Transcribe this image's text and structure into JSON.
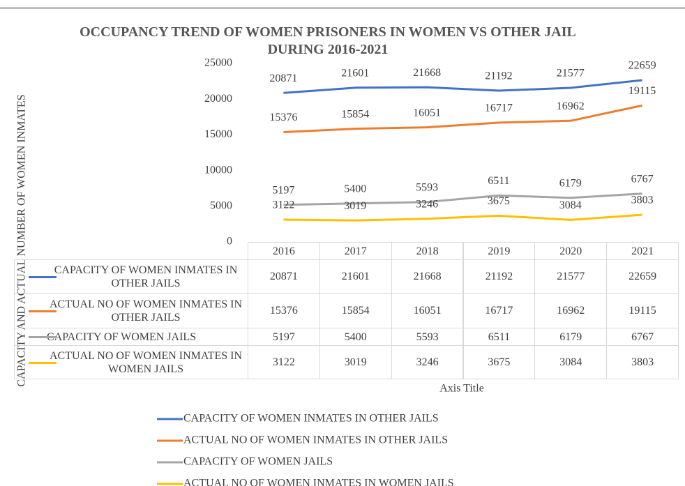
{
  "chart_data": {
    "type": "line",
    "title": "OCCUPANCY TREND OF WOMEN PRISONERS IN WOMEN VS OTHER JAIL DURING 2016-2021",
    "ylabel": "CAPACITY AND ACTUAL NUMBER OF WOMEN INMATES",
    "xlabel": "Axis Title",
    "categories": [
      "2016",
      "2017",
      "2018",
      "2019",
      "2020",
      "2021"
    ],
    "series": [
      {
        "name": "CAPACITY OF WOMEN INMATES IN OTHER JAILS",
        "color": "#4472c4",
        "values": [
          20871,
          21601,
          21668,
          21192,
          21577,
          22659
        ]
      },
      {
        "name": "ACTUAL NO OF WOMEN INMATES IN OTHER JAILS",
        "color": "#ed7d31",
        "values": [
          15376,
          15854,
          16051,
          16717,
          16962,
          19115
        ]
      },
      {
        "name": "CAPACITY OF WOMEN JAILS",
        "color": "#a5a5a5",
        "values": [
          5197,
          5400,
          5593,
          6511,
          6179,
          6767
        ]
      },
      {
        "name": "ACTUAL NO OF WOMEN INMATES IN WOMEN JAILS",
        "color": "#ffc000",
        "values": [
          3122,
          3019,
          3246,
          3675,
          3084,
          3803
        ]
      }
    ],
    "ylim": [
      0,
      25000
    ],
    "yticks": [
      0,
      5000,
      10000,
      15000,
      20000,
      25000
    ],
    "grid": false,
    "data_table": true,
    "legend": "bottom"
  }
}
